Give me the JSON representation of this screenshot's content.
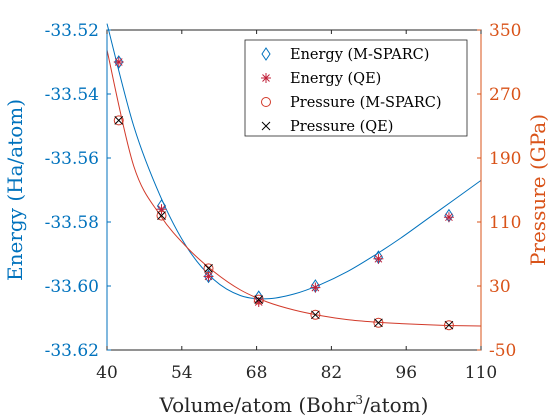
{
  "chart_data": {
    "type": "scatter",
    "xlabel": "Volume/atom (Bohr³/atom)",
    "xlabel_parts": {
      "pre": "Volume/atom (Bohr",
      "sup": "3",
      "post": "/atom)"
    },
    "ylabel_left": "Energy (Ha/atom)",
    "ylabel_right": "Pressure (GPa)",
    "xlim": [
      40,
      110
    ],
    "ylim_left": [
      -33.62,
      -33.52
    ],
    "ylim_right": [
      -50,
      350
    ],
    "xticks": [
      "40",
      "54",
      "68",
      "82",
      "96",
      "110"
    ],
    "yticks_left": [
      "-33.52",
      "-33.54",
      "-33.56",
      "-33.58",
      "-33.60",
      "-33.62"
    ],
    "yticks_right": [
      "350",
      "270",
      "190",
      "110",
      "30",
      "-50"
    ],
    "legend_position": "top-right",
    "colors": {
      "energy_axis": "#0072bd",
      "pressure_axis": "#d95319",
      "energy_qe": "#c0203a",
      "pressure_mspark": "#d23a2a",
      "pressure_qe": "#000000"
    },
    "series": [
      {
        "name": "Energy (M-SPARC)",
        "axis": "left",
        "marker": "diamond",
        "color": "#0072bd",
        "x": [
          42.2,
          50.2,
          59.0,
          68.4,
          79.0,
          90.8,
          104.0
        ],
        "y": [
          -33.53,
          -33.575,
          -33.597,
          -33.6035,
          -33.6,
          -33.591,
          -33.578
        ]
      },
      {
        "name": "Energy (QE)",
        "axis": "left",
        "marker": "asterisk",
        "color": "#c0203a",
        "x": [
          42.2,
          50.2,
          59.0,
          68.4,
          79.0,
          90.8,
          104.0
        ],
        "y": [
          -33.53,
          -33.576,
          -33.597,
          -33.605,
          -33.6005,
          -33.5915,
          -33.5785
        ]
      },
      {
        "name": "Pressure (M-SPARC)",
        "axis": "right",
        "marker": "circle",
        "color": "#d23a2a",
        "x": [
          42.2,
          50.2,
          59.0,
          68.4,
          79.0,
          90.8,
          104.0
        ],
        "y": [
          237,
          118,
          52,
          13,
          -6,
          -16,
          -19
        ]
      },
      {
        "name": "Pressure (QE)",
        "axis": "right",
        "marker": "x",
        "color": "#000000",
        "x": [
          42.2,
          50.2,
          59.0,
          68.4,
          79.0,
          90.8,
          104.0
        ],
        "y": [
          237,
          118,
          52,
          13,
          -6,
          -16,
          -19
        ]
      }
    ],
    "fit_curves": [
      {
        "axis": "left",
        "color": "#0072bd",
        "x": [
          40,
          45,
          50,
          55,
          60,
          65,
          70,
          75,
          80,
          85,
          90,
          95,
          100,
          105,
          110
        ],
        "y": [
          -33.518,
          -33.55,
          -33.572,
          -33.588,
          -33.598,
          -33.603,
          -33.604,
          -33.6025,
          -33.5995,
          -33.5955,
          -33.5905,
          -33.585,
          -33.579,
          -33.573,
          -33.567
        ]
      },
      {
        "axis": "right",
        "color": "#d23a2a",
        "x": [
          40,
          45,
          50,
          55,
          60,
          65,
          70,
          75,
          80,
          85,
          90,
          95,
          100,
          105,
          110
        ],
        "y": [
          325,
          180,
          118,
          78,
          48,
          25,
          10,
          0,
          -7,
          -12,
          -15,
          -17,
          -18.5,
          -19.5,
          -20
        ]
      }
    ]
  }
}
